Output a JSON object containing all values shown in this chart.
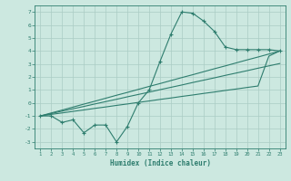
{
  "x": [
    1,
    2,
    3,
    4,
    5,
    6,
    7,
    8,
    9,
    10,
    11,
    12,
    13,
    14,
    15,
    16,
    17,
    18,
    19,
    20,
    21,
    22,
    23
  ],
  "y_main": [
    -1.0,
    -1.0,
    -1.5,
    -1.3,
    -2.3,
    -1.7,
    -1.7,
    -3.0,
    -1.8,
    0.0,
    1.0,
    3.2,
    5.3,
    7.0,
    6.9,
    6.3,
    5.5,
    4.3,
    4.1,
    4.1,
    4.1,
    4.1,
    4.0
  ],
  "y_line1": [
    -1.0,
    -0.77,
    -0.55,
    -0.32,
    -0.09,
    0.13,
    0.36,
    0.59,
    0.81,
    1.04,
    1.27,
    1.49,
    1.72,
    1.95,
    2.17,
    2.4,
    2.63,
    2.85,
    3.08,
    3.31,
    3.53,
    3.76,
    3.99
  ],
  "y_line2": [
    -1.0,
    -0.82,
    -0.63,
    -0.45,
    -0.27,
    -0.08,
    0.1,
    0.28,
    0.47,
    0.65,
    0.83,
    1.02,
    1.2,
    1.38,
    1.57,
    1.75,
    1.93,
    2.12,
    2.3,
    2.48,
    2.67,
    2.85,
    3.03
  ],
  "y_line3": [
    -1.0,
    -0.88,
    -0.77,
    -0.65,
    -0.54,
    -0.42,
    -0.31,
    -0.19,
    -0.08,
    0.04,
    0.15,
    0.27,
    0.38,
    0.5,
    0.61,
    0.73,
    0.84,
    0.96,
    1.07,
    1.19,
    1.3,
    3.6,
    4.0
  ],
  "color_main": "#2e7d6e",
  "bg_color": "#cce8e0",
  "grid_color": "#aaccc4",
  "ylim": [
    -3.5,
    7.5
  ],
  "xlim": [
    0.5,
    23.5
  ],
  "yticks": [
    -3,
    -2,
    -1,
    0,
    1,
    2,
    3,
    4,
    5,
    6,
    7
  ],
  "xticks": [
    1,
    2,
    3,
    4,
    5,
    6,
    7,
    8,
    9,
    10,
    11,
    12,
    13,
    14,
    15,
    16,
    17,
    18,
    19,
    20,
    21,
    22,
    23
  ],
  "xlabel": "Humidex (Indice chaleur)"
}
